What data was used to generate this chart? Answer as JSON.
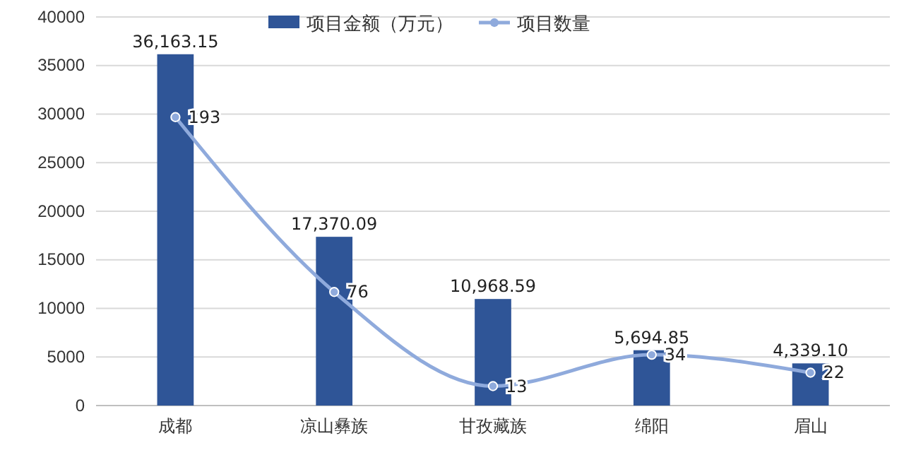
{
  "chart_data": {
    "type": "bar",
    "categories": [
      "成都",
      "凉山彝族",
      "甘孜藏族",
      "绵阳",
      "眉山"
    ],
    "series": [
      {
        "name": "项目金额（万元）",
        "color": "#2f5597",
        "values": [
          36163.15,
          17370.09,
          10968.59,
          5694.85,
          4339.1
        ],
        "value_labels": [
          "36,163.15",
          "17,370.09",
          "10,968.59",
          "5,694.85",
          "4,339.10"
        ]
      },
      {
        "name": "项目数量",
        "type": "line",
        "axis": "y2",
        "color": "#8faadc",
        "values": [
          193,
          76,
          13,
          34,
          22
        ]
      }
    ],
    "ylim": [
      0,
      40000
    ],
    "yticks": [
      0,
      5000,
      10000,
      15000,
      20000,
      25000,
      30000,
      35000,
      40000
    ],
    "y2lim": [
      0,
      260
    ],
    "tick_labels": "xy",
    "grid": "y",
    "legend": "top",
    "marker": "circle",
    "line_style": "solid",
    "data_labels": true
  }
}
